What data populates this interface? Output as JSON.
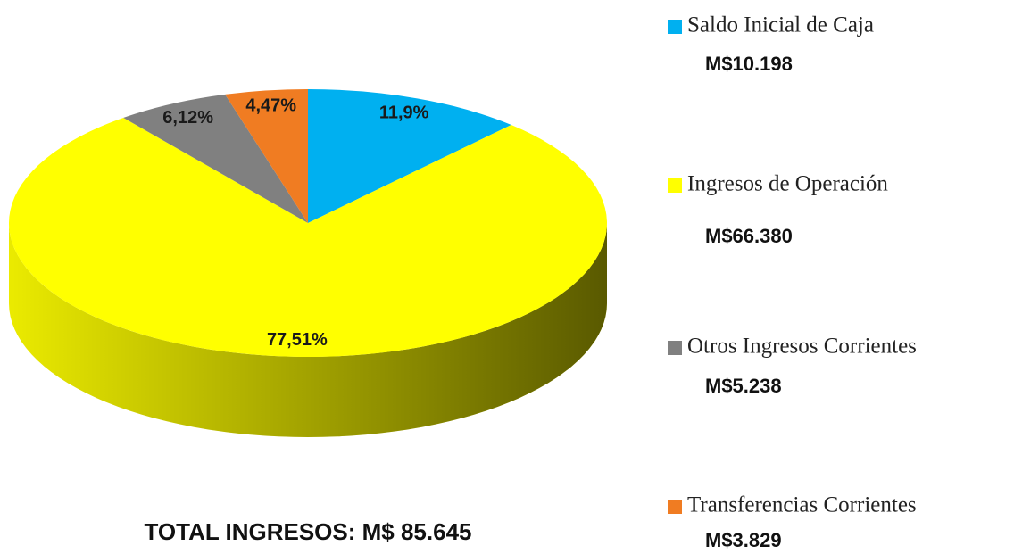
{
  "chart_data": {
    "type": "pie",
    "categories": [
      "Saldo Inicial de Caja",
      "Ingresos de Operación",
      "Otros Ingresos Corrientes",
      "Transferencias Corrientes"
    ],
    "values": [
      11.9,
      77.51,
      6.12,
      4.47
    ],
    "value_labels": [
      "11,9%",
      "77,51%",
      "6,12%",
      "4,47%"
    ],
    "colors": [
      "#00b0f0",
      "#ffff00",
      "#808080",
      "#f07c22"
    ],
    "legend_amounts": [
      "M$10.198",
      "M$66.380",
      "M$5.238",
      "M$3.829"
    ],
    "total_label": "TOTAL INGRESOS: M$ 85.645",
    "legend": "right"
  }
}
